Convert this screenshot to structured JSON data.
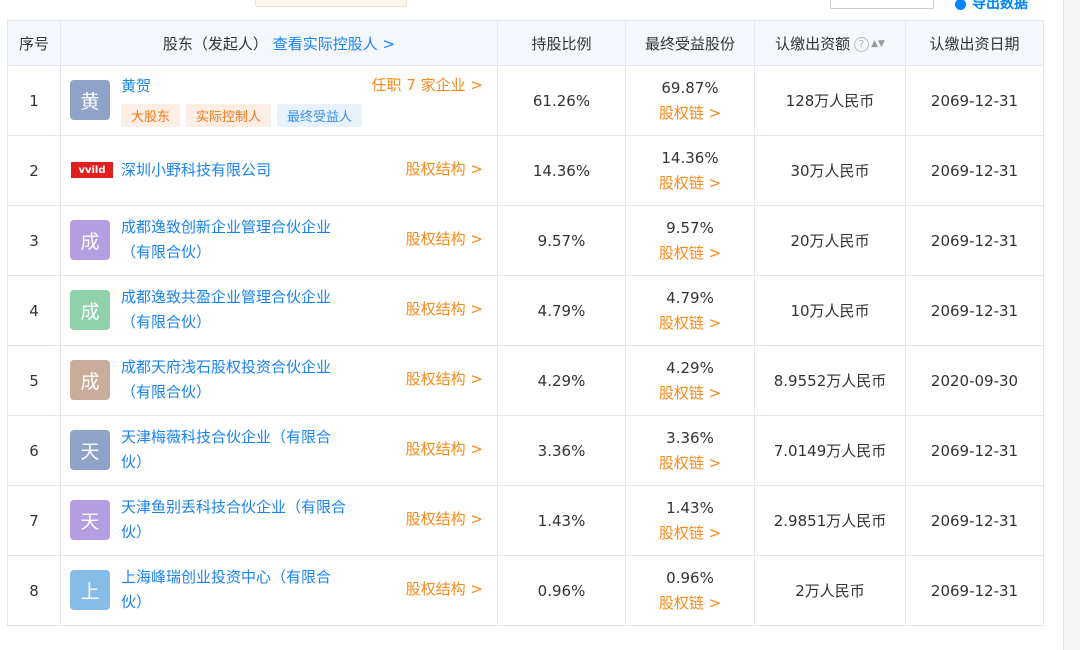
{
  "top": {
    "export_label": "导出数据"
  },
  "headers": [
    "序号",
    "股东（发起人）",
    "查看实际控股人 >",
    "持股比例",
    "最终受益股份",
    "认缴出资额",
    "认缴出资日期"
  ],
  "colors": {
    "link": "#1a83f2",
    "orange": "#fa8a1a",
    "header_bg": "#f4f7fb",
    "border": "#e4e8ee"
  },
  "tags": [
    "大股东",
    "实际控制人",
    "最终受益人"
  ],
  "chain_label": "股权链",
  "structure_label": "股权结构",
  "rows": [
    {
      "idx": "1",
      "avatar": "黄",
      "avatar_color": "#8fa3c9",
      "name": "黄贺",
      "right": "任职 7 家企业",
      "pct": "61.26%",
      "benefit": "69.87%",
      "capital": "128万人民币",
      "date": "2069-12-31"
    },
    {
      "idx": "2",
      "logo": "vvild",
      "name": "深圳小野科技有限公司",
      "right": "股权结构",
      "pct": "14.36%",
      "benefit": "14.36%",
      "capital": "30万人民币",
      "date": "2069-12-31"
    },
    {
      "idx": "3",
      "avatar": "成",
      "avatar_color": "#b29ee0",
      "name": "成都逸致创新企业管理合伙企业",
      "name2": "（有限合伙）",
      "right": "股权结构",
      "pct": "9.57%",
      "benefit": "9.57%",
      "capital": "20万人民币",
      "date": "2069-12-31"
    },
    {
      "idx": "4",
      "avatar": "成",
      "avatar_color": "#8fd1a8",
      "name": "成都逸致共盈企业管理合伙企业",
      "name2": "（有限合伙）",
      "right": "股权结构",
      "pct": "4.79%",
      "benefit": "4.79%",
      "capital": "10万人民币",
      "date": "2069-12-31"
    },
    {
      "idx": "5",
      "avatar": "成",
      "avatar_color": "#c9ad9a",
      "name": "成都天府浅石股权投资合伙企业",
      "name2": "（有限合伙）",
      "right": "股权结构",
      "pct": "4.29%",
      "benefit": "4.29%",
      "capital": "8.9552万人民币",
      "date": "2020-09-30"
    },
    {
      "idx": "6",
      "avatar": "天",
      "avatar_color": "#8fa3c9",
      "name": "天津梅薇科技合伙企业（有限合",
      "name2": "伙）",
      "right": "股权结构",
      "pct": "3.36%",
      "benefit": "3.36%",
      "capital": "7.0149万人民币",
      "date": "2069-12-31"
    },
    {
      "idx": "7",
      "avatar": "天",
      "avatar_color": "#b29ee0",
      "name": "天津鱼别丢科技合伙企业（有限合",
      "name2": "伙）",
      "right": "股权结构",
      "pct": "1.43%",
      "benefit": "1.43%",
      "capital": "2.9851万人民币",
      "date": "2069-12-31"
    },
    {
      "idx": "8",
      "avatar": "上",
      "avatar_color": "#86bde8",
      "name": "上海峰瑞创业投资中心（有限合",
      "name2": "伙）",
      "right": "股权结构",
      "pct": "0.96%",
      "benefit": "0.96%",
      "capital": "2万人民币",
      "date": "2069-12-31"
    }
  ]
}
